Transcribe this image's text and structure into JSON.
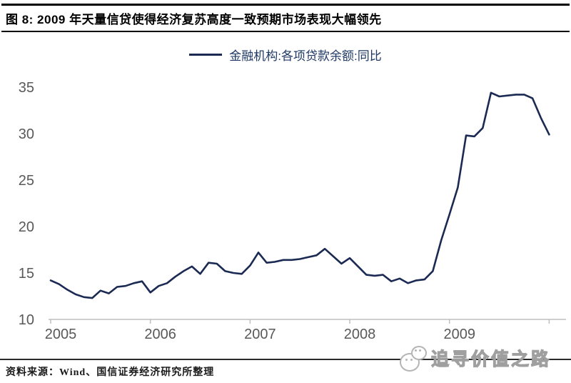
{
  "header": {
    "title": "图 8: 2009 年天量信贷使得经济复苏高度一致预期市场表现大幅领先"
  },
  "legend": {
    "label": "金融机构:各项贷款余额:同比"
  },
  "footer": {
    "source": "资料来源：Wind、国信证券经济研究所整理"
  },
  "watermark": {
    "text": "追寻价值之路",
    "logo": "chat-bubbles-icon"
  },
  "colors": {
    "line": "#1b2a52",
    "legend_text": "#1f3864",
    "axis": "#bfbfbf",
    "tick_label": "#595959",
    "title_text": "#000000"
  },
  "chart_data": {
    "type": "line",
    "title": "",
    "xlabel": "",
    "ylabel": "",
    "grid": false,
    "legend_position": "top-center",
    "ylim": [
      10,
      36
    ],
    "y_ticks": [
      10,
      15,
      20,
      25,
      30,
      35
    ],
    "x_tick_labels": [
      "2005",
      "2006",
      "2007",
      "2008",
      "2009"
    ],
    "x": [
      "2005-01",
      "2005-02",
      "2005-03",
      "2005-04",
      "2005-05",
      "2005-06",
      "2005-07",
      "2005-08",
      "2005-09",
      "2005-10",
      "2005-11",
      "2005-12",
      "2006-01",
      "2006-02",
      "2006-03",
      "2006-04",
      "2006-05",
      "2006-06",
      "2006-07",
      "2006-08",
      "2006-09",
      "2006-10",
      "2006-11",
      "2006-12",
      "2007-01",
      "2007-02",
      "2007-03",
      "2007-04",
      "2007-05",
      "2007-06",
      "2007-07",
      "2007-08",
      "2007-09",
      "2007-10",
      "2007-11",
      "2007-12",
      "2008-01",
      "2008-02",
      "2008-03",
      "2008-04",
      "2008-05",
      "2008-06",
      "2008-07",
      "2008-08",
      "2008-09",
      "2008-10",
      "2008-11",
      "2008-12",
      "2009-01",
      "2009-02",
      "2009-03",
      "2009-04",
      "2009-05",
      "2009-06",
      "2009-07",
      "2009-08",
      "2009-09",
      "2009-10",
      "2009-11",
      "2009-12",
      "2010-01"
    ],
    "series": [
      {
        "name": "金融机构:各项贷款余额:同比",
        "values": [
          14.2,
          13.8,
          13.2,
          12.7,
          12.4,
          12.3,
          13.1,
          12.8,
          13.5,
          13.6,
          13.9,
          14.1,
          12.9,
          13.6,
          13.9,
          14.6,
          15.2,
          15.7,
          14.9,
          16.1,
          16.0,
          15.2,
          15.0,
          14.9,
          15.8,
          17.2,
          16.1,
          16.2,
          16.4,
          16.4,
          16.5,
          16.7,
          16.9,
          17.6,
          16.8,
          16.0,
          16.6,
          15.7,
          14.8,
          14.7,
          14.8,
          14.1,
          14.4,
          13.9,
          14.2,
          14.3,
          15.2,
          18.5,
          21.3,
          24.2,
          29.8,
          29.7,
          30.6,
          34.4,
          34.0,
          34.1,
          34.2,
          34.2,
          33.8,
          31.7,
          29.9
        ]
      }
    ]
  }
}
